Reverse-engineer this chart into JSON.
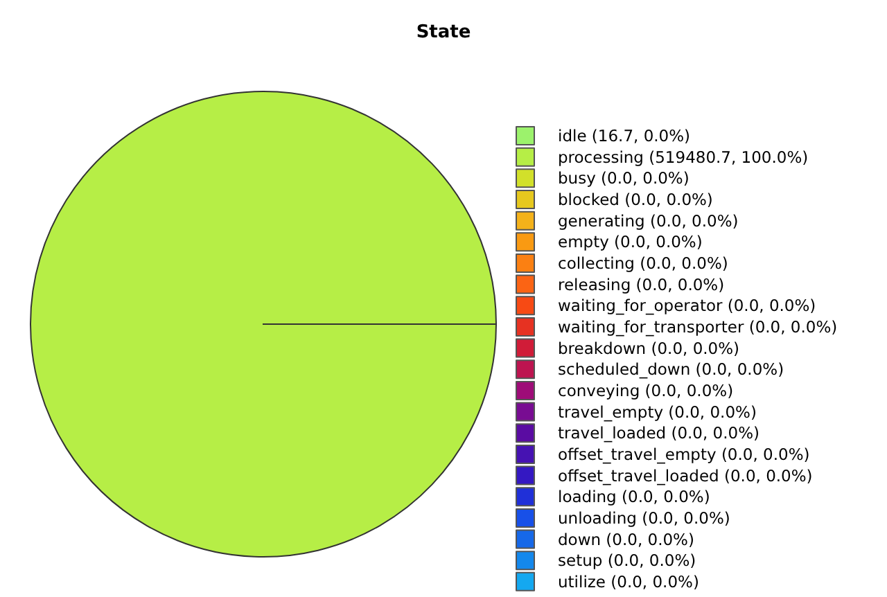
{
  "chart_data": {
    "type": "pie",
    "title": "State",
    "categories": [
      "idle (16.7, 0.0%)",
      "processing (519480.7, 100.0%)",
      "busy (0.0, 0.0%)",
      "blocked (0.0, 0.0%)",
      "generating (0.0, 0.0%)",
      "empty (0.0, 0.0%)",
      "collecting (0.0, 0.0%)",
      "releasing (0.0, 0.0%)",
      "waiting_for_operator (0.0, 0.0%)",
      "waiting_for_transporter (0.0, 0.0%)",
      "breakdown (0.0, 0.0%)",
      "scheduled_down (0.0, 0.0%)",
      "conveying (0.0, 0.0%)",
      "travel_empty (0.0, 0.0%)",
      "travel_loaded (0.0, 0.0%)",
      "offset_travel_empty (0.0, 0.0%)",
      "offset_travel_loaded (0.0, 0.0%)",
      "loading (0.0, 0.0%)",
      "unloading (0.0, 0.0%)",
      "down (0.0, 0.0%)",
      "setup (0.0, 0.0%)",
      "utilize (0.0, 0.0%)"
    ],
    "values": [
      16.7,
      519480.7,
      0,
      0,
      0,
      0,
      0,
      0,
      0,
      0,
      0,
      0,
      0,
      0,
      0,
      0,
      0,
      0,
      0,
      0,
      0,
      0
    ],
    "colors": [
      "#9cf26c",
      "#b6ee46",
      "#d2e02a",
      "#e6c81e",
      "#f4b21a",
      "#f99a12",
      "#fb8012",
      "#fb6414",
      "#f74a14",
      "#e63222",
      "#d01c38",
      "#bd1450",
      "#9e0c78",
      "#780c92",
      "#5a0ca2",
      "#4612b2",
      "#3418c2",
      "#2030d8",
      "#1850e8",
      "#1668e8",
      "#1488ec",
      "#14a8f0"
    ],
    "legend": "right"
  }
}
